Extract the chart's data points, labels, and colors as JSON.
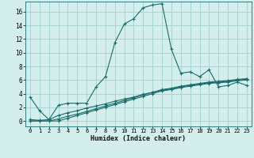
{
  "title": "",
  "xlabel": "Humidex (Indice chaleur)",
  "background_color": "#d4eeed",
  "grid_color": "#a8d4d0",
  "line_color": "#1a6b6b",
  "xlim": [
    -0.5,
    23.5
  ],
  "ylim": [
    -0.8,
    17.5
  ],
  "x_ticks": [
    0,
    1,
    2,
    3,
    4,
    5,
    6,
    7,
    8,
    9,
    10,
    11,
    12,
    13,
    14,
    15,
    16,
    17,
    18,
    19,
    20,
    21,
    22,
    23
  ],
  "y_ticks": [
    0,
    2,
    4,
    6,
    8,
    10,
    12,
    14,
    16
  ],
  "series1_x": [
    0,
    1,
    2,
    3,
    4,
    5,
    6,
    7,
    8,
    9,
    10,
    11,
    12,
    13,
    14,
    15,
    16,
    17,
    18,
    19,
    20,
    21,
    22,
    23
  ],
  "series1_y": [
    3.5,
    1.5,
    0.2,
    2.3,
    2.6,
    2.6,
    2.6,
    5.0,
    6.5,
    11.5,
    14.2,
    15.0,
    16.6,
    17.0,
    17.2,
    10.5,
    7.0,
    7.2,
    6.5,
    7.5,
    5.0,
    5.2,
    5.7,
    5.2
  ],
  "series2_x": [
    0,
    1,
    2,
    3,
    4,
    5,
    6,
    7,
    8,
    9,
    10,
    11,
    12,
    13,
    14,
    15,
    16,
    17,
    18,
    19,
    20,
    21,
    22,
    23
  ],
  "series2_y": [
    0.2,
    0.1,
    0.2,
    0.8,
    1.2,
    1.5,
    1.9,
    2.2,
    2.5,
    2.9,
    3.2,
    3.5,
    3.9,
    4.2,
    4.5,
    4.7,
    5.0,
    5.2,
    5.4,
    5.6,
    5.7,
    5.8,
    6.0,
    6.1
  ],
  "series3_x": [
    0,
    1,
    2,
    3,
    4,
    5,
    6,
    7,
    8,
    9,
    10,
    11,
    12,
    13,
    14,
    15,
    16,
    17,
    18,
    19,
    20,
    21,
    22,
    23
  ],
  "series3_y": [
    0.0,
    0.0,
    0.0,
    0.3,
    0.7,
    1.0,
    1.4,
    1.8,
    2.2,
    2.6,
    3.0,
    3.4,
    3.8,
    4.2,
    4.6,
    4.8,
    5.1,
    5.3,
    5.5,
    5.7,
    5.8,
    5.9,
    6.1,
    6.2
  ],
  "series4_x": [
    0,
    1,
    2,
    3,
    4,
    5,
    6,
    7,
    8,
    9,
    10,
    11,
    12,
    13,
    14,
    15,
    16,
    17,
    18,
    19,
    20,
    21,
    22,
    23
  ],
  "series4_y": [
    0.0,
    0.0,
    0.0,
    0.0,
    0.4,
    0.8,
    1.2,
    1.6,
    2.0,
    2.4,
    2.8,
    3.2,
    3.6,
    4.0,
    4.4,
    4.6,
    4.9,
    5.1,
    5.3,
    5.5,
    5.6,
    5.7,
    5.9,
    6.0
  ]
}
